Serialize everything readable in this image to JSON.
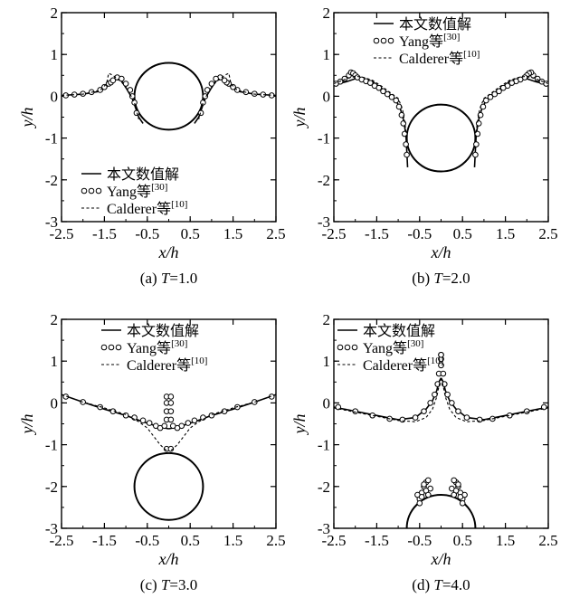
{
  "chart_data": [
    {
      "type": "line",
      "xlim": [
        -2.5,
        2.5
      ],
      "ylim": [
        -3,
        2
      ],
      "xticks": [
        "-2.5",
        "-1.5",
        "-0.5",
        "0.5",
        "1.5",
        "2.5"
      ],
      "yticks": [
        "2",
        "1",
        "0",
        "-1",
        "-2",
        "-3"
      ],
      "xlabel": "x/h",
      "ylabel": "y/h",
      "caption": {
        "prefix": "(a) ",
        "var": "T",
        "value": "=1.0"
      },
      "legend_position": "bottom-left",
      "grid": false,
      "cylinder": {
        "cx": 0.0,
        "cy": 0.0,
        "r": 0.8
      },
      "series": [
        {
          "name": "本文数值解",
          "style": "solid",
          "x": [
            -2.5,
            -2.0,
            -1.6,
            -1.45,
            -1.35,
            -1.25,
            -1.15,
            -1.05,
            -0.95,
            -0.85,
            -0.8,
            -0.7,
            -0.6
          ],
          "y": [
            0.02,
            0.05,
            0.12,
            0.22,
            0.35,
            0.45,
            0.42,
            0.3,
            0.12,
            -0.05,
            -0.2,
            -0.5,
            -0.65
          ],
          "mirror": true
        },
        {
          "name": "Yang等",
          "sup": "[30]",
          "style": "circle",
          "x": [
            -2.4,
            -2.2,
            -2.0,
            -1.8,
            -1.6,
            -1.5,
            -1.4,
            -1.35,
            -1.3,
            -1.2,
            -1.1,
            -1.0,
            -0.9,
            -0.85,
            -0.8,
            -0.75
          ],
          "y": [
            0.02,
            0.04,
            0.06,
            0.1,
            0.15,
            0.22,
            0.3,
            0.33,
            0.38,
            0.45,
            0.42,
            0.3,
            0.15,
            0.0,
            -0.15,
            -0.4
          ],
          "mirror": true
        },
        {
          "name": "Calderer等",
          "sup": "[10]",
          "style": "dotted",
          "x": [
            -2.5,
            -2.0,
            -1.6,
            -1.45,
            -1.4,
            -1.3,
            -1.2,
            -1.1,
            -1.0,
            -0.9,
            -0.8,
            -0.7
          ],
          "y": [
            0.02,
            0.05,
            0.14,
            0.3,
            0.55,
            0.5,
            0.42,
            0.34,
            0.2,
            0.05,
            -0.15,
            -0.55
          ],
          "mirror": true
        }
      ]
    },
    {
      "type": "line",
      "xlim": [
        -2.5,
        2.5
      ],
      "ylim": [
        -3,
        2
      ],
      "xticks": [
        "-2.5",
        "-1.5",
        "-0.5",
        "0.5",
        "1.5",
        "2.5"
      ],
      "yticks": [
        "2",
        "1",
        "0",
        "-1",
        "-2",
        "-3"
      ],
      "xlabel": "x/h",
      "ylabel": "y/h",
      "caption": {
        "prefix": "(b) ",
        "var": "T",
        "value": "=2.0"
      },
      "legend_position": "top-center",
      "grid": false,
      "cylinder": {
        "cx": 0.0,
        "cy": -1.0,
        "r": 0.8
      },
      "series": [
        {
          "name": "本文数值解",
          "style": "solid",
          "x": [
            -2.5,
            -2.2,
            -2.0,
            -1.8,
            -1.6,
            -1.4,
            -1.2,
            -1.05,
            -0.95,
            -0.88,
            -0.82,
            -0.8,
            -0.78
          ],
          "y": [
            0.27,
            0.35,
            0.42,
            0.42,
            0.35,
            0.2,
            0.05,
            -0.1,
            -0.3,
            -0.55,
            -0.9,
            -1.3,
            -1.7
          ],
          "mirror": true
        },
        {
          "name": "Yang等",
          "sup": "[30]",
          "style": "circle",
          "x": [
            -2.45,
            -2.35,
            -2.25,
            -2.15,
            -2.1,
            -2.05,
            -2.0,
            -1.95,
            -1.85,
            -1.75,
            -1.65,
            -1.55,
            -1.45,
            -1.35,
            -1.25,
            -1.15,
            -1.05,
            -0.98,
            -0.92,
            -0.88,
            -0.85,
            -0.82,
            -0.8
          ],
          "y": [
            0.3,
            0.35,
            0.42,
            0.5,
            0.57,
            0.55,
            0.5,
            0.45,
            0.4,
            0.36,
            0.32,
            0.25,
            0.2,
            0.12,
            0.05,
            -0.02,
            -0.1,
            -0.25,
            -0.45,
            -0.65,
            -0.9,
            -1.15,
            -1.4
          ],
          "mirror": true
        },
        {
          "name": "Calderer等",
          "sup": "[10]",
          "style": "dotted",
          "x": [
            -2.5,
            -2.2,
            -2.0,
            -1.8,
            -1.6,
            -1.4,
            -1.2,
            -1.0,
            -0.9,
            -0.85,
            -0.8
          ],
          "y": [
            0.3,
            0.42,
            0.48,
            0.45,
            0.38,
            0.25,
            0.1,
            -0.05,
            -0.3,
            -0.6,
            -1.0
          ],
          "mirror": true
        }
      ]
    },
    {
      "type": "line",
      "xlim": [
        -2.5,
        2.5
      ],
      "ylim": [
        -3,
        2
      ],
      "xticks": [
        "-2.5",
        "-1.5",
        "-0.5",
        "0.5",
        "1.5",
        "2.5"
      ],
      "yticks": [
        "2",
        "1",
        "0",
        "-1",
        "-2",
        "-3"
      ],
      "xlabel": "x/h",
      "ylabel": "y/h",
      "caption": {
        "prefix": "(c) ",
        "var": "T",
        "value": "=3.0"
      },
      "legend_position": "top-center",
      "grid": false,
      "cylinder": {
        "cx": 0.0,
        "cy": -2.0,
        "r": 0.8
      },
      "series": [
        {
          "name": "本文数值解",
          "style": "solid",
          "x": [
            -2.5,
            -2.0,
            -1.5,
            -1.0,
            -0.6,
            -0.3,
            -0.1,
            0.0
          ],
          "y": [
            0.2,
            0.02,
            -0.15,
            -0.3,
            -0.45,
            -0.55,
            -0.6,
            -0.62
          ],
          "mirror": true
        },
        {
          "name": "Yang等",
          "sup": "[30]",
          "style": "circle",
          "x": [
            -2.4,
            -2.0,
            -1.6,
            -1.3,
            -1.0,
            -0.8,
            -0.6,
            -0.45,
            -0.3,
            -0.2,
            -0.1,
            -0.05,
            -0.05,
            -0.05,
            -0.05,
            -0.05
          ],
          "y": [
            0.15,
            0.02,
            -0.1,
            -0.2,
            -0.3,
            -0.35,
            -0.42,
            -0.48,
            -0.55,
            -0.6,
            -0.55,
            -0.4,
            -0.2,
            0.0,
            0.15,
            -1.1
          ],
          "mirror": true
        },
        {
          "name": "Calderer等",
          "sup": "[10]",
          "style": "dotted",
          "x": [
            -2.5,
            -2.0,
            -1.5,
            -1.0,
            -0.7,
            -0.5,
            -0.35,
            -0.2,
            -0.1,
            -0.03
          ],
          "y": [
            0.2,
            0.02,
            -0.12,
            -0.28,
            -0.45,
            -0.6,
            -0.8,
            -1.0,
            -1.1,
            -1.15
          ],
          "mirror": true
        }
      ]
    },
    {
      "type": "line",
      "xlim": [
        -2.5,
        2.5
      ],
      "ylim": [
        -3,
        2
      ],
      "xticks": [
        "-2.5",
        "-1.5",
        "-0.5",
        "0.5",
        "1.5",
        "2.5"
      ],
      "yticks": [
        "2",
        "1",
        "0",
        "-1",
        "-2",
        "-3"
      ],
      "xlabel": "x/h",
      "ylabel": "y/h",
      "caption": {
        "prefix": "(d) ",
        "var": "T",
        "value": "=4.0"
      },
      "legend_position": "top-left",
      "grid": false,
      "cylinder": {
        "cx": 0.0,
        "cy": -3.0,
        "r": 0.8
      },
      "series": [
        {
          "name": "本文数值解",
          "style": "solid",
          "x": [
            -2.5,
            -2.0,
            -1.5,
            -1.0,
            -0.6,
            -0.35,
            -0.2,
            -0.1,
            -0.05,
            0.0
          ],
          "y": [
            -0.1,
            -0.2,
            -0.3,
            -0.4,
            -0.35,
            -0.15,
            0.05,
            0.3,
            0.5,
            0.6
          ],
          "mirror": true
        },
        {
          "name": "Yang等",
          "sup": "[30]",
          "style": "circle",
          "x": [
            -2.4,
            -2.0,
            -1.6,
            -1.2,
            -0.9,
            -0.6,
            -0.4,
            -0.25,
            -0.15,
            -0.08,
            -0.05,
            0.0,
            0.0,
            0.0
          ],
          "y": [
            -0.1,
            -0.2,
            -0.3,
            -0.38,
            -0.4,
            -0.35,
            -0.2,
            0.0,
            0.2,
            0.45,
            0.7,
            0.9,
            1.05,
            1.15
          ],
          "mirror": true
        },
        {
          "name": "Calderer等",
          "sup": "[10]",
          "style": "dotted",
          "x": [
            -2.5,
            -2.0,
            -1.5,
            -1.0,
            -0.6,
            -0.35,
            -0.2,
            -0.1,
            -0.05,
            0.0
          ],
          "y": [
            -0.12,
            -0.22,
            -0.32,
            -0.42,
            -0.45,
            -0.35,
            -0.15,
            0.15,
            0.4,
            0.6
          ],
          "mirror": true
        },
        {
          "name": "",
          "style": "circle",
          "x": [
            -0.5,
            -0.45,
            -0.4,
            -0.35,
            -0.3,
            -0.25,
            -0.5,
            -0.55,
            -0.45,
            -0.35,
            -0.3,
            -0.4
          ],
          "y": [
            -2.3,
            -2.15,
            -2.0,
            -1.9,
            -1.85,
            -2.05,
            -2.4,
            -2.2,
            -2.25,
            -2.1,
            -2.2,
            -1.95
          ],
          "mirror": true
        }
      ]
    }
  ]
}
